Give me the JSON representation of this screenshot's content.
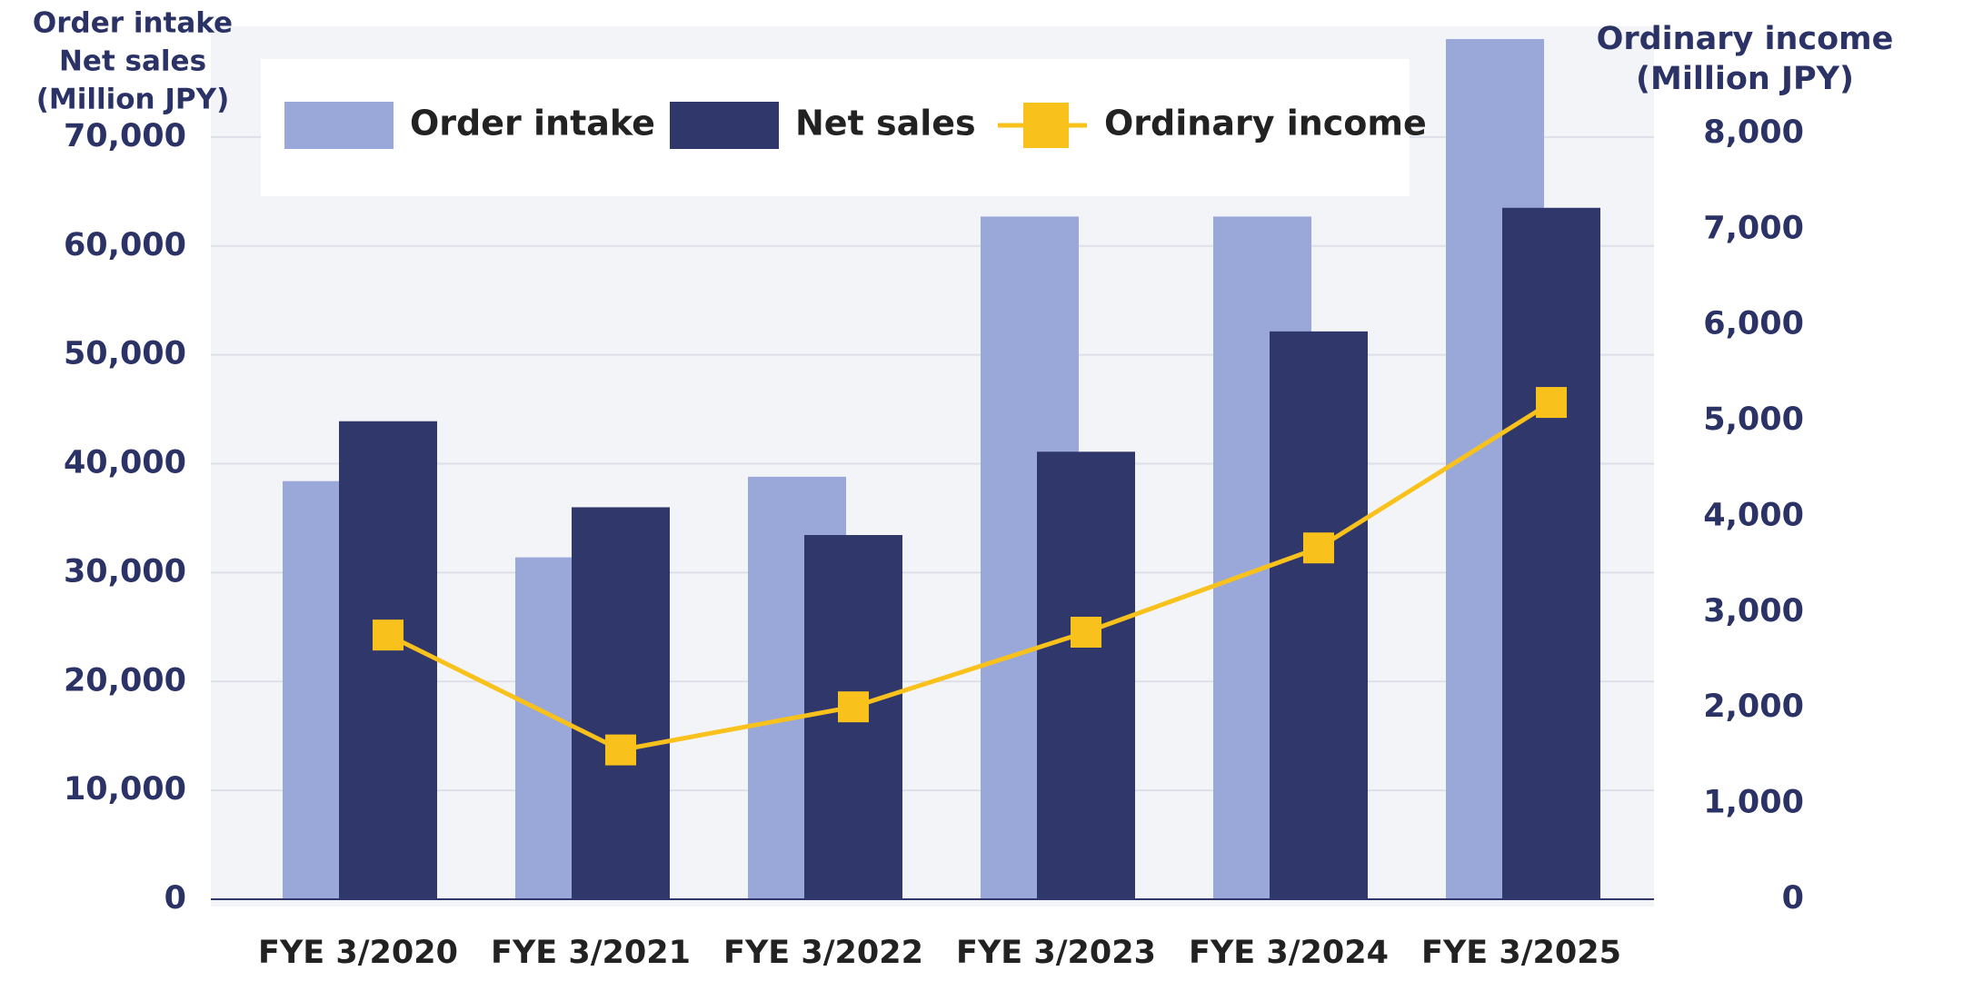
{
  "chart_data": {
    "type": "bar_line",
    "y_axis_title": [
      "Order intake",
      "Net sales",
      "(Million JPY)"
    ],
    "y2_axis_title": [
      "Ordinary income",
      "(Million JPY)"
    ],
    "categories": [
      "FYE 3/2020",
      "FYE 3/2021",
      "FYE 3/2022",
      "FYE 3/2023",
      "FYE 3/2024",
      "FYE 3/2025"
    ],
    "series": [
      {
        "name": "Order intake",
        "type": "bar",
        "color": "#99a8d8",
        "values": [
          38400,
          31400,
          38800,
          62700,
          62700,
          79000
        ]
      },
      {
        "name": "Net sales",
        "type": "bar",
        "color": "#30376a",
        "values": [
          43900,
          36000,
          33450,
          41100,
          52150,
          63500
        ]
      },
      {
        "name": "Ordinary income",
        "type": "line",
        "axis": "y2",
        "color": "#f8c11c",
        "values": [
          2760,
          1560,
          2010,
          2790,
          3670,
          5190
        ]
      }
    ],
    "ylim": [
      0,
      80000
    ],
    "yticks": [
      0,
      {
        "value": 10000,
        "label": "10,000"
      },
      {
        "value": 20000,
        "label": "20,000"
      },
      {
        "value": 30000,
        "label": "30,000"
      },
      {
        "value": 40000,
        "label": "40,000"
      },
      {
        "value": 50000,
        "label": "50,000"
      },
      {
        "value": 60000,
        "label": "60,000"
      },
      {
        "value": 70000,
        "label": "70,000"
      }
    ],
    "y2lim": [
      0,
      9100
    ],
    "y2ticks": [
      0,
      {
        "value": 1000,
        "label": "1,000"
      },
      {
        "value": 2000,
        "label": "2,000"
      },
      {
        "value": 3000,
        "label": "3,000"
      },
      {
        "value": 4000,
        "label": "4,000"
      },
      {
        "value": 5000,
        "label": "5,000"
      },
      {
        "value": 6000,
        "label": "6,000"
      },
      {
        "value": 7000,
        "label": "7,000"
      },
      {
        "value": 8000,
        "label": "8,000"
      }
    ],
    "grid": true
  }
}
